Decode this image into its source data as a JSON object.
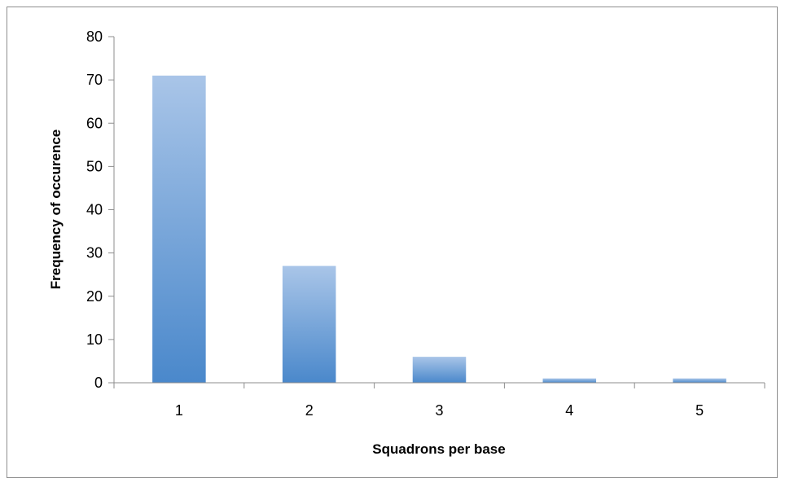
{
  "chart_data": {
    "type": "bar",
    "title": "",
    "xlabel": "Squadrons per base",
    "ylabel": "Frequency of occurence",
    "categories": [
      "1",
      "2",
      "3",
      "4",
      "5"
    ],
    "values": [
      71,
      27,
      6,
      1,
      1
    ],
    "ylim": [
      0,
      80
    ],
    "yticks": [
      0,
      10,
      20,
      30,
      40,
      50,
      60,
      70,
      80
    ],
    "ytick_labels": [
      "0",
      "10",
      "20",
      "30",
      "40",
      "50",
      "60",
      "70",
      "80"
    ],
    "grid": false,
    "legend": "none",
    "colors": {
      "bar_top": "#a9c5e8",
      "bar_bottom": "#4a88cb",
      "axis": "#8c8c8c"
    }
  }
}
